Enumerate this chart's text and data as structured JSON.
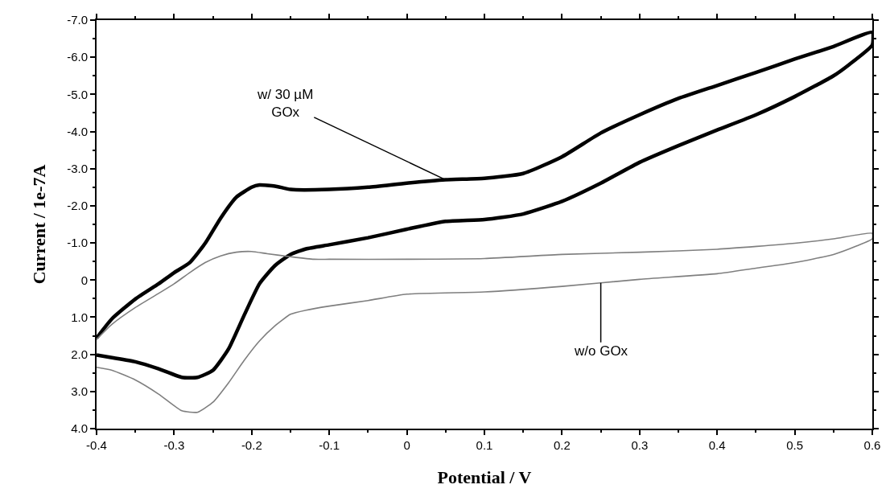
{
  "chart_data": {
    "type": "line",
    "xlabel": "Potential / V",
    "ylabel": "Current / 1e-7A",
    "xlim": [
      -0.4,
      0.6
    ],
    "xticks": [
      -0.4,
      -0.3,
      -0.2,
      -0.1,
      0,
      0.1,
      0.2,
      0.3,
      0.4,
      0.5,
      0.6
    ],
    "ylim": [
      4.0,
      -7.0
    ],
    "yticks": [
      {
        "value": -7,
        "label": "-7.0"
      },
      {
        "value": -6,
        "label": "-6.0"
      },
      {
        "value": -5,
        "label": "-5.0"
      },
      {
        "value": -4,
        "label": "-4.0"
      },
      {
        "value": -3,
        "label": "-3.0"
      },
      {
        "value": -2,
        "label": "-2.0"
      },
      {
        "value": -1,
        "label": "-1.0"
      },
      0,
      {
        "value": 1,
        "label": "1.0"
      },
      {
        "value": 2,
        "label": "2.0"
      },
      {
        "value": 3,
        "label": "3.0"
      },
      {
        "value": 4,
        "label": "4.0"
      }
    ],
    "marker": "none",
    "line_style": "solid",
    "series": [
      {
        "color": "#000000",
        "x": [
          -0.4,
          -0.38,
          -0.35,
          -0.32,
          -0.3,
          -0.28,
          -0.26,
          -0.24,
          -0.22,
          -0.2,
          -0.19,
          -0.17,
          -0.15,
          -0.1,
          -0.05,
          0,
          0.05,
          0.1,
          0.15,
          0.2,
          0.25,
          0.3,
          0.35,
          0.4,
          0.45,
          0.5,
          0.55,
          0.6,
          0.6,
          0.57,
          0.55,
          0.5,
          0.45,
          0.4,
          0.35,
          0.3,
          0.25,
          0.2,
          0.15,
          0.1,
          0.05,
          0,
          -0.05,
          -0.1,
          -0.13,
          -0.15,
          -0.17,
          -0.19,
          -0.21,
          -0.23,
          -0.25,
          -0.27,
          -0.29,
          -0.32,
          -0.35,
          -0.38,
          -0.4
        ],
        "values": [
          1.56,
          1.04,
          0.51,
          0.1,
          -0.2,
          -0.47,
          -0.99,
          -1.67,
          -2.23,
          -2.5,
          -2.56,
          -2.53,
          -2.44,
          -2.44,
          -2.5,
          -2.61,
          -2.7,
          -2.74,
          -2.87,
          -3.32,
          -3.96,
          -4.45,
          -4.89,
          -5.24,
          -5.59,
          -5.95,
          -6.29,
          -6.67,
          -6.33,
          -5.8,
          -5.5,
          -4.94,
          -4.45,
          -4.04,
          -3.62,
          -3.17,
          -2.61,
          -2.12,
          -1.78,
          -1.63,
          -1.58,
          -1.37,
          -1.14,
          -0.95,
          -0.84,
          -0.69,
          -0.39,
          0.1,
          0.96,
          1.86,
          2.43,
          2.62,
          2.62,
          2.39,
          2.2,
          2.09,
          2.02
        ]
      },
      {
        "color": "#7f7f7f",
        "x": [
          -0.4,
          -0.38,
          -0.35,
          -0.32,
          -0.3,
          -0.28,
          -0.26,
          -0.24,
          -0.22,
          -0.2,
          -0.18,
          -0.15,
          -0.12,
          -0.1,
          0,
          0.1,
          0.2,
          0.3,
          0.4,
          0.5,
          0.55,
          0.6,
          0.6,
          0.58,
          0.55,
          0.5,
          0.45,
          0.4,
          0.3,
          0.2,
          0.1,
          0,
          -0.05,
          -0.1,
          -0.13,
          -0.15,
          -0.17,
          -0.19,
          -0.21,
          -0.23,
          -0.25,
          -0.27,
          -0.29,
          -0.32,
          -0.35,
          -0.38,
          -0.4
        ],
        "values": [
          1.6,
          1.19,
          0.74,
          0.36,
          0.1,
          -0.2,
          -0.47,
          -0.65,
          -0.75,
          -0.77,
          -0.71,
          -0.63,
          -0.56,
          -0.56,
          -0.56,
          -0.58,
          -0.69,
          -0.75,
          -0.83,
          -0.99,
          -1.11,
          -1.26,
          -1.11,
          -0.92,
          -0.69,
          -0.47,
          -0.32,
          -0.17,
          -0.02,
          0.17,
          0.32,
          0.38,
          0.55,
          0.7,
          0.81,
          0.92,
          1.23,
          1.64,
          2.17,
          2.77,
          3.29,
          3.56,
          3.52,
          3.07,
          2.69,
          2.43,
          2.35
        ]
      }
    ],
    "annotations": [
      {
        "text": "w/ 30 µM\nGOx",
        "x": 0.05,
        "y": -2.7
      },
      {
        "text": "w/o GOx",
        "x": 0.25,
        "y": 0.075
      }
    ]
  }
}
